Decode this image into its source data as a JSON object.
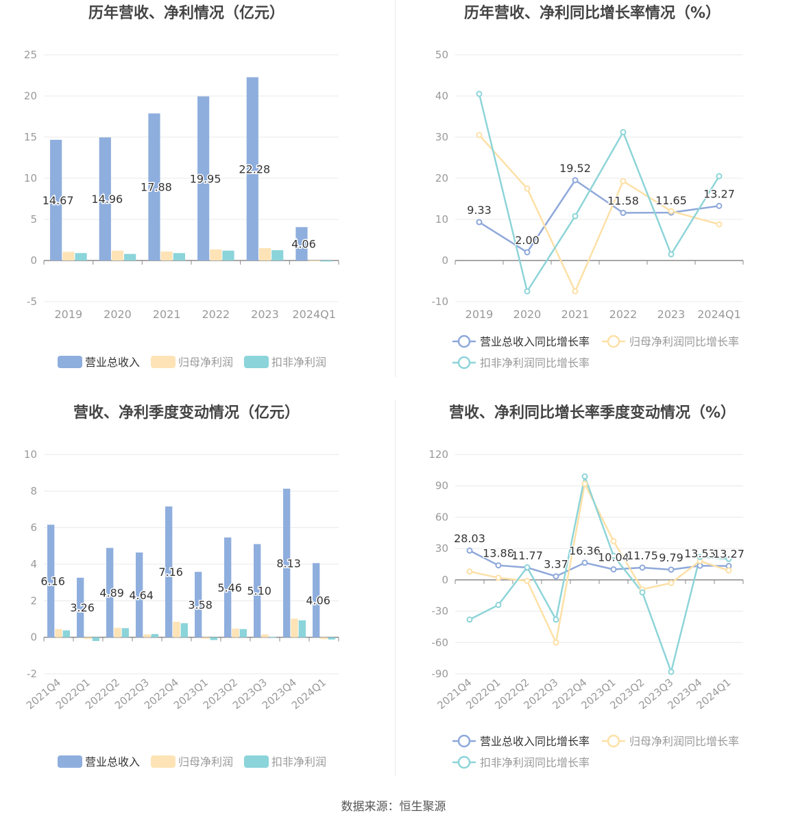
{
  "source_text": "数据来源：恒生聚源",
  "colors": {
    "revenue": "#8eaedd",
    "net_profit": "#fde3b6",
    "deducted_profit": "#8ad4da",
    "revenue_line": "#8ea8da",
    "net_profit_line": "#fde0a6",
    "deducted_line": "#8dd4d8",
    "axis": "#888888",
    "grid": "#e8e8e8",
    "text": "#444444",
    "tick": "#999999"
  },
  "chart_data": [
    {
      "id": "annual-revenue-profit",
      "type": "bar",
      "title": "历年营收、净利情况（亿元）",
      "categories": [
        "2019",
        "2020",
        "2021",
        "2022",
        "2023",
        "2024Q1"
      ],
      "ylim": [
        -5,
        25
      ],
      "yticks": [
        -5,
        0,
        5,
        10,
        15,
        20,
        25
      ],
      "grid": true,
      "legend_position": "bottom",
      "series": [
        {
          "name": "营业总收入",
          "values": [
            14.67,
            14.96,
            17.88,
            19.95,
            22.28,
            4.06
          ],
          "labels": [
            "14.67",
            "14.96",
            "17.88",
            "19.95",
            "22.28",
            "4.06"
          ]
        },
        {
          "name": "归母净利润",
          "values": [
            1.05,
            1.2,
            1.1,
            1.35,
            1.5,
            -0.1
          ]
        },
        {
          "name": "扣非净利润",
          "values": [
            0.9,
            0.8,
            0.9,
            1.2,
            1.25,
            -0.12
          ]
        }
      ]
    },
    {
      "id": "annual-growth",
      "type": "line",
      "title": "历年营收、净利同比增长率情况（%）",
      "categories": [
        "2019",
        "2020",
        "2021",
        "2022",
        "2023",
        "2024Q1"
      ],
      "ylim": [
        -10,
        50
      ],
      "yticks": [
        -10,
        0,
        10,
        20,
        30,
        40,
        50
      ],
      "grid": true,
      "legend_position": "bottom",
      "series": [
        {
          "name": "营业总收入同比增长率",
          "values": [
            9.33,
            2.0,
            19.52,
            11.58,
            11.65,
            13.27
          ],
          "labels": [
            "9.33",
            "2.00",
            "19.52",
            "11.58",
            "11.65",
            "13.27"
          ]
        },
        {
          "name": "归母净利润同比增长率",
          "values": [
            30.5,
            17.5,
            -7.5,
            19.3,
            12.0,
            8.8
          ]
        },
        {
          "name": "扣非净利润同比增长率",
          "values": [
            40.5,
            -7.5,
            10.8,
            31.2,
            1.5,
            20.5
          ]
        }
      ]
    },
    {
      "id": "quarterly-revenue-profit",
      "type": "bar",
      "title": "营收、净利季度变动情况（亿元）",
      "categories": [
        "2021Q4",
        "2022Q1",
        "2022Q2",
        "2022Q3",
        "2022Q4",
        "2023Q1",
        "2023Q2",
        "2023Q3",
        "2023Q4",
        "2024Q1"
      ],
      "ylim": [
        -2,
        10
      ],
      "yticks": [
        -2,
        0,
        2,
        4,
        6,
        8,
        10
      ],
      "grid": true,
      "legend_position": "bottom",
      "series": [
        {
          "name": "营业总收入",
          "values": [
            6.16,
            3.26,
            4.89,
            4.64,
            7.16,
            3.58,
            5.46,
            5.1,
            8.13,
            4.06
          ],
          "labels": [
            "6.16",
            "3.26",
            "4.89",
            "4.64",
            "7.16",
            "3.58",
            "5.46",
            "5.10",
            "8.13",
            "4.06"
          ]
        },
        {
          "name": "归母净利润",
          "values": [
            0.45,
            -0.1,
            0.52,
            0.16,
            0.85,
            -0.08,
            0.48,
            0.16,
            1.02,
            -0.1
          ]
        },
        {
          "name": "扣非净利润",
          "values": [
            0.38,
            -0.2,
            0.5,
            0.18,
            0.77,
            -0.15,
            0.45,
            0.02,
            0.93,
            -0.12
          ]
        }
      ]
    },
    {
      "id": "quarterly-growth",
      "type": "line",
      "title": "营收、净利同比增长率季度变动情况（%）",
      "categories": [
        "2021Q4",
        "2022Q1",
        "2022Q2",
        "2022Q3",
        "2022Q4",
        "2023Q1",
        "2023Q2",
        "2023Q3",
        "2023Q4",
        "2024Q1"
      ],
      "ylim": [
        -90,
        120
      ],
      "yticks": [
        -90,
        -60,
        -30,
        0,
        30,
        60,
        90,
        120
      ],
      "grid": true,
      "legend_position": "bottom",
      "series": [
        {
          "name": "营业总收入同比增长率",
          "values": [
            28.03,
            13.88,
            11.77,
            3.37,
            16.36,
            10.04,
            11.75,
            9.79,
            13.53,
            13.27
          ],
          "labels": [
            "28.03",
            "13.88",
            "11.77",
            "3.37",
            "16.36",
            "10.04",
            "11.75",
            "9.79",
            "13.53",
            "13.27"
          ]
        },
        {
          "name": "归母净利润同比增长率",
          "values": [
            8,
            2,
            -1,
            -60,
            92,
            37,
            -9,
            -3,
            18,
            9
          ]
        },
        {
          "name": "扣非净利润同比增长率",
          "values": [
            -38,
            -24,
            12,
            -38,
            99,
            23,
            -12,
            -88,
            22,
            20
          ]
        }
      ]
    }
  ]
}
